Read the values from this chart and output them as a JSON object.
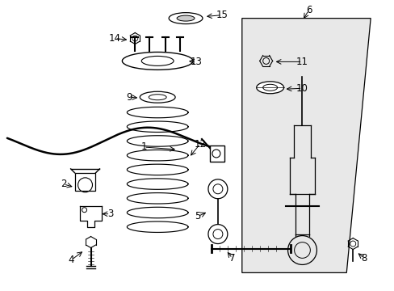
{
  "bg_color": "#ffffff",
  "box_fill": "#e8e8e8",
  "line_color": "#000000",
  "label_color": "#000000"
}
